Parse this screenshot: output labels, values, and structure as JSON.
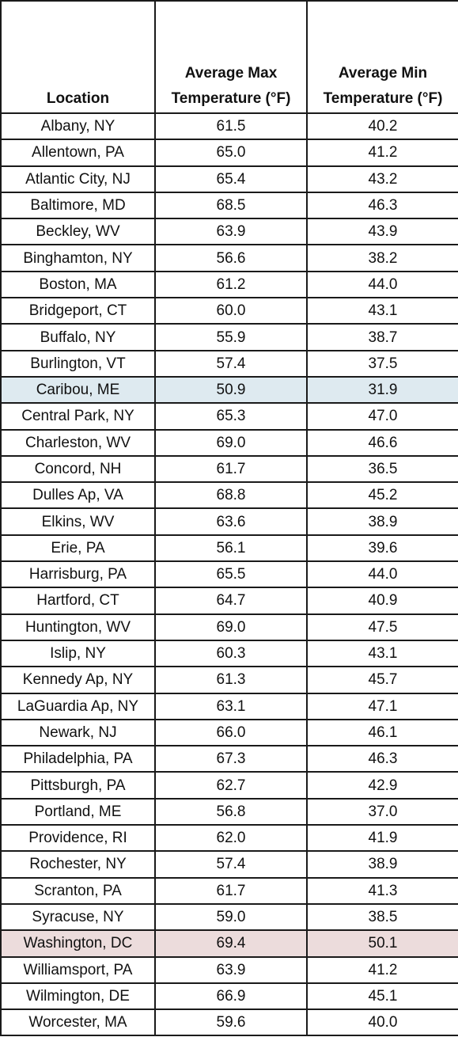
{
  "table": {
    "header": [
      "Location",
      "Average Max Temperature (°F)",
      "Average Min Temperature (°F)"
    ],
    "rows": [
      [
        "Albany, NY",
        "61.5",
        "40.2"
      ],
      [
        "Allentown, PA",
        "65.0",
        "41.2"
      ],
      [
        "Atlantic City, NJ",
        "65.4",
        "43.2"
      ],
      [
        "Baltimore, MD",
        "68.5",
        "46.3"
      ],
      [
        "Beckley, WV",
        "63.9",
        "43.9"
      ],
      [
        "Binghamton, NY",
        "56.6",
        "38.2"
      ],
      [
        "Boston, MA",
        "61.2",
        "44.0"
      ],
      [
        "Bridgeport, CT",
        "60.0",
        "43.1"
      ],
      [
        "Buffalo, NY",
        "55.9",
        "38.7"
      ],
      [
        "Burlington, VT",
        "57.4",
        "37.5"
      ],
      [
        "Caribou, ME",
        "50.9",
        "31.9"
      ],
      [
        "Central Park, NY",
        "65.3",
        "47.0"
      ],
      [
        "Charleston, WV",
        "69.0",
        "46.6"
      ],
      [
        "Concord, NH",
        "61.7",
        "36.5"
      ],
      [
        "Dulles Ap, VA",
        "68.8",
        "45.2"
      ],
      [
        "Elkins, WV",
        "63.6",
        "38.9"
      ],
      [
        "Erie, PA",
        "56.1",
        "39.6"
      ],
      [
        "Harrisburg, PA",
        "65.5",
        "44.0"
      ],
      [
        "Hartford, CT",
        "64.7",
        "40.9"
      ],
      [
        "Huntington, WV",
        "69.0",
        "47.5"
      ],
      [
        "Islip, NY",
        "60.3",
        "43.1"
      ],
      [
        "Kennedy Ap, NY",
        "61.3",
        "45.7"
      ],
      [
        "LaGuardia Ap, NY",
        "63.1",
        "47.1"
      ],
      [
        "Newark, NJ",
        "66.0",
        "46.1"
      ],
      [
        "Philadelphia, PA",
        "67.3",
        "46.3"
      ],
      [
        "Pittsburgh, PA",
        "62.7",
        "42.9"
      ],
      [
        "Portland, ME",
        "56.8",
        "37.0"
      ],
      [
        "Providence, RI",
        "62.0",
        "41.9"
      ],
      [
        "Rochester, NY",
        "57.4",
        "38.9"
      ],
      [
        "Scranton, PA",
        "61.7",
        "41.3"
      ],
      [
        "Syracuse, NY",
        "59.0",
        "38.5"
      ],
      [
        "Washington, DC",
        "69.4",
        "50.1"
      ],
      [
        "Williamsport, PA",
        "63.9",
        "41.2"
      ],
      [
        "Wilmington, DE",
        "66.9",
        "45.1"
      ],
      [
        "Worcester, MA",
        "59.6",
        "40.0"
      ]
    ]
  }
}
